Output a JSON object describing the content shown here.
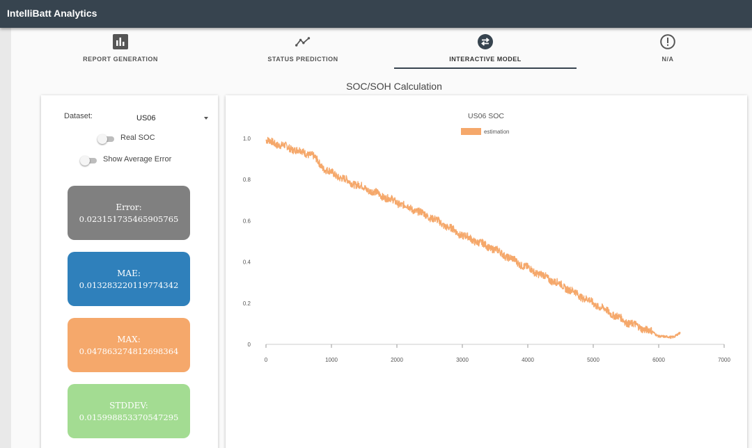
{
  "app": {
    "title": "IntelliBatt Analytics"
  },
  "tabs": [
    {
      "label": "REPORT GENERATION",
      "icon": "bar-chart-icon",
      "active": false
    },
    {
      "label": "STATUS PREDICTION",
      "icon": "trend-line-icon",
      "active": false
    },
    {
      "label": "INTERACTIVE MODEL",
      "icon": "swap-icon",
      "active": true
    },
    {
      "label": "N/A",
      "icon": "alert-circle-icon",
      "active": false
    }
  ],
  "section": {
    "title": "SOC/SOH Calculation"
  },
  "controls": {
    "dataset_label": "Dataset:",
    "dataset_value": "US06",
    "real_soc_label": "Real SOC",
    "real_soc_on": false,
    "avg_error_label": "Show Average Error",
    "avg_error_on": false
  },
  "stats": [
    {
      "label": "Error:",
      "value": "0.023151735465905765",
      "color": "#808080"
    },
    {
      "label": "MAE:",
      "value": "0.013283220119774342",
      "color": "#2f80bb"
    },
    {
      "label": "MAX:",
      "value": "0.047863274812698364",
      "color": "#f5a86b"
    },
    {
      "label": "STDDEV:",
      "value": "0.015998853370547295",
      "color": "#a3dc92"
    }
  ],
  "chart_data": {
    "type": "line",
    "title": "US06 SOC",
    "legend": "top-center",
    "xlim": [
      0,
      7000
    ],
    "ylim": [
      0,
      1.0
    ],
    "x_ticks": [
      "0",
      "1000",
      "2000",
      "3000",
      "4000",
      "5000",
      "6000",
      "7000"
    ],
    "y_ticks": [
      "0",
      "0.2",
      "0.4",
      "0.6",
      "0.8",
      "1.0"
    ],
    "grid": false,
    "series": [
      {
        "name": "estimation",
        "color": "#f5a86b",
        "noisy": true,
        "x": [
          0,
          300,
          700,
          900,
          1200,
          1500,
          2000,
          2500,
          3000,
          3500,
          4000,
          4500,
          5000,
          5500,
          5900,
          6100,
          6200,
          6330
        ],
        "y": [
          0.99,
          0.96,
          0.92,
          0.85,
          0.8,
          0.76,
          0.69,
          0.62,
          0.53,
          0.46,
          0.37,
          0.29,
          0.2,
          0.11,
          0.06,
          0.03,
          0.04,
          0.05
        ]
      }
    ]
  }
}
